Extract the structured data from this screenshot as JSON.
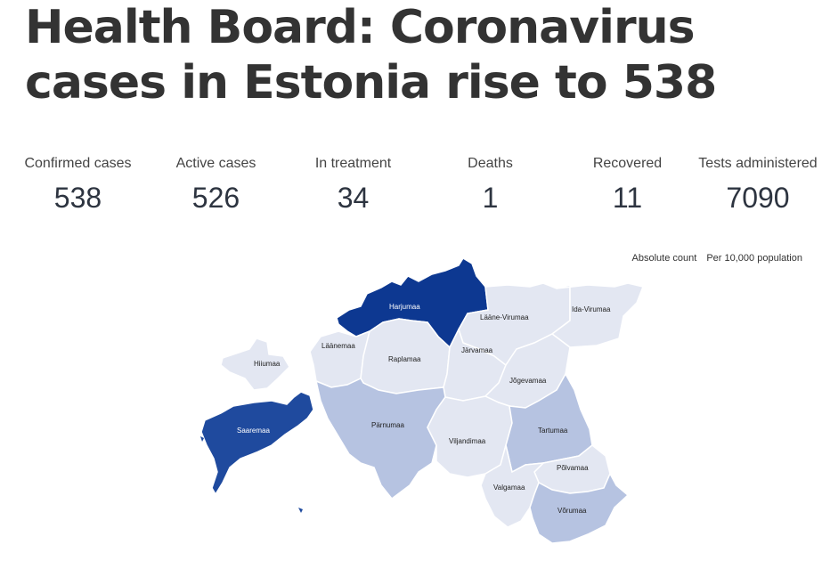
{
  "headline": "Health Board: Coronavirus cases in Estonia rise to 538",
  "stats": [
    {
      "label": "Confirmed cases",
      "value": "538"
    },
    {
      "label": "Active cases",
      "value": "526"
    },
    {
      "label": "In treatment",
      "value": "34"
    },
    {
      "label": "Deaths",
      "value": "1"
    },
    {
      "label": "Recovered",
      "value": "11"
    },
    {
      "label": "Tests administered",
      "value": "7090"
    }
  ],
  "map": {
    "toggles": {
      "absolute": "Absolute count",
      "per_capita": "Per 10,000 population"
    },
    "colors": {
      "low": "#e3e7f2",
      "mid": "#b6c3e1",
      "high": "#1f4a9e",
      "highest": "#0d3891"
    },
    "regions": [
      {
        "name": "Harjumaa",
        "level": "highest"
      },
      {
        "name": "Lääne-Virumaa",
        "level": "low"
      },
      {
        "name": "Ida-Virumaa",
        "level": "low"
      },
      {
        "name": "Läänemaa",
        "level": "low"
      },
      {
        "name": "Raplamaa",
        "level": "low"
      },
      {
        "name": "Järvamaa",
        "level": "low"
      },
      {
        "name": "Hiiumaa",
        "level": "low"
      },
      {
        "name": "Jõgevamaa",
        "level": "low"
      },
      {
        "name": "Saaremaa",
        "level": "high"
      },
      {
        "name": "Pärnumaa",
        "level": "mid"
      },
      {
        "name": "Viljandimaa",
        "level": "low"
      },
      {
        "name": "Tartumaa",
        "level": "mid"
      },
      {
        "name": "Põlvamaa",
        "level": "low"
      },
      {
        "name": "Valgamaa",
        "level": "low"
      },
      {
        "name": "Võrumaa",
        "level": "mid"
      }
    ]
  }
}
